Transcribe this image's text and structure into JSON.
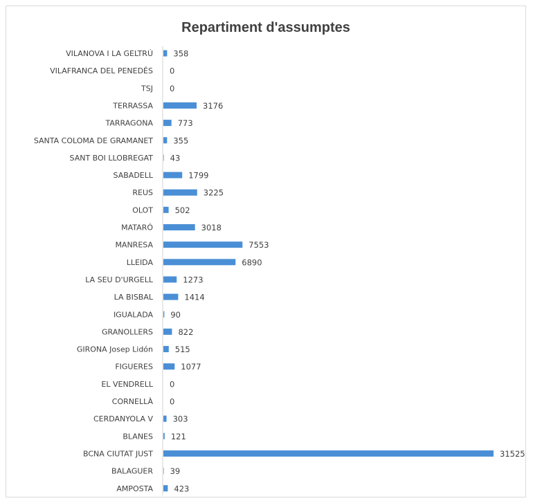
{
  "chart_data": {
    "type": "bar",
    "orientation": "horizontal",
    "title": "Repartiment d'assumptes",
    "xlabel": "",
    "ylabel": "",
    "xlim": [
      0,
      31525
    ],
    "grid": false,
    "legend": "none",
    "bar_color": "#4a8fd6",
    "categories": [
      "VILANOVA I LA GELTRÚ",
      "VILAFRANCA DEL PENEDÉS",
      "TSJ",
      "TERRASSA",
      "TARRAGONA",
      "SANTA COLOMA DE GRAMANET",
      "SANT BOI LLOBREGAT",
      "SABADELL",
      "REUS",
      "OLOT",
      "MATARÓ",
      "MANRESA",
      "LLEIDA",
      "LA SEU D'URGELL",
      "LA BISBAL",
      "IGUALADA",
      "GRANOLLERS",
      "GIRONA Josep Lidón",
      "FIGUERES",
      "EL VENDRELL",
      "CORNELLÀ",
      "CERDANYOLA V",
      "BLANES",
      "BCNA CIUTAT JUST",
      "BALAGUER",
      "AMPOSTA"
    ],
    "values": [
      358,
      0,
      0,
      3176,
      773,
      355,
      43,
      1799,
      3225,
      502,
      3018,
      7553,
      6890,
      1273,
      1414,
      90,
      822,
      515,
      1077,
      0,
      0,
      303,
      121,
      31525,
      39,
      423
    ],
    "data_labels": [
      "358",
      "0",
      "0",
      "3176",
      "773",
      "355",
      "43",
      "1799",
      "3225",
      "502",
      "3018",
      "7553",
      "6890",
      "1273",
      "1414",
      "90",
      "822",
      "515",
      "1077",
      "0",
      "0",
      "303",
      "121",
      "31525",
      "39",
      "423"
    ]
  }
}
